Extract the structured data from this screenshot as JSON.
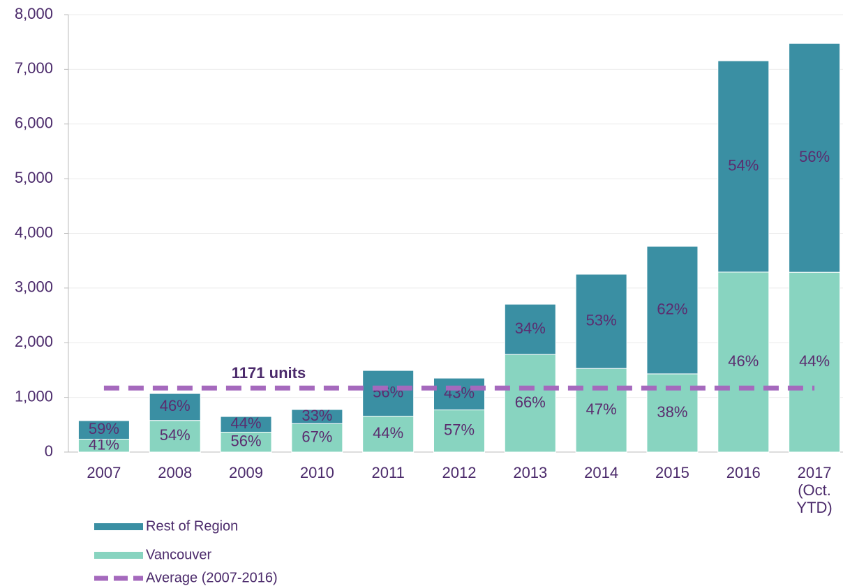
{
  "chart_data": {
    "type": "bar",
    "stacked": true,
    "categories": [
      "2007",
      "2008",
      "2009",
      "2010",
      "2011",
      "2012",
      "2013",
      "2014",
      "2015",
      "2016",
      "2017 (Oct. YTD)"
    ],
    "series": [
      {
        "name": "Vancouver",
        "color": "#88d4c0",
        "values": [
          236,
          578,
          364,
          521,
          656,
          771,
          1785,
          1529,
          1430,
          3292,
          3289
        ],
        "share_labels": [
          "41%",
          "54%",
          "56%",
          "67%",
          "44%",
          "57%",
          "66%",
          "47%",
          "38%",
          "46%",
          "44%"
        ]
      },
      {
        "name": "Rest of Region",
        "color": "#3a8fa3",
        "values": [
          339,
          493,
          286,
          257,
          836,
          581,
          919,
          1724,
          2333,
          3864,
          4185
        ],
        "share_labels": [
          "59%",
          "46%",
          "44%",
          "33%",
          "56%",
          "43%",
          "34%",
          "53%",
          "62%",
          "54%",
          "56%"
        ]
      }
    ],
    "average": {
      "name": "Average (2007-2016)",
      "value": 1171,
      "label": "1171 units",
      "color": "#a569bd"
    },
    "ylim": [
      0,
      8000
    ],
    "yticks": [
      0,
      {
        "value": 1000,
        "label": "1,000"
      },
      {
        "value": 2000,
        "label": "2,000"
      },
      {
        "value": 3000,
        "label": "3,000"
      },
      {
        "value": 4000,
        "label": "4,000"
      },
      {
        "value": 5000,
        "label": "5,000"
      },
      {
        "value": 6000,
        "label": "6,000"
      },
      {
        "value": 7000,
        "label": "7,000"
      },
      {
        "value": 8000,
        "label": "8,000"
      }
    ],
    "grid": true,
    "legend": "bottom-left"
  }
}
